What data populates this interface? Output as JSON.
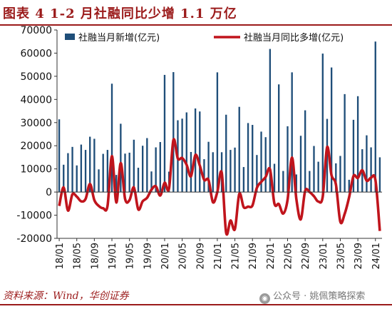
{
  "figure": {
    "label": "图表 4",
    "title": "1-2 月社融同比少增 1.1 万亿",
    "source": "资料来源：Wind，华创证券",
    "watermark": "公众号 · 姚佩策略探索",
    "colors": {
      "bar": "#1f4e79",
      "line": "#c0141c",
      "accent": "#9b1b1b"
    }
  },
  "chart_data": {
    "type": "bar",
    "title": "",
    "xlabel": "",
    "ylabel": "",
    "ylim": [
      -20000,
      70000
    ],
    "yticks": [
      -20000,
      -10000,
      0,
      10000,
      20000,
      30000,
      40000,
      50000,
      60000,
      70000
    ],
    "xtick_labels": [
      "18/01",
      "18/05",
      "18/09",
      "19/01",
      "19/05",
      "19/09",
      "20/01",
      "20/05",
      "20/09",
      "21/01",
      "21/05",
      "21/09",
      "22/01",
      "22/05",
      "22/09",
      "23/01",
      "23/05",
      "23/09",
      "24/01"
    ],
    "grid": false,
    "legend_position": "top",
    "categories": [
      "18/01",
      "18/02",
      "18/03",
      "18/04",
      "18/05",
      "18/06",
      "18/07",
      "18/08",
      "18/09",
      "18/10",
      "18/11",
      "18/12",
      "19/01",
      "19/02",
      "19/03",
      "19/04",
      "19/05",
      "19/06",
      "19/07",
      "19/08",
      "19/09",
      "19/10",
      "19/11",
      "19/12",
      "20/01",
      "20/02",
      "20/03",
      "20/04",
      "20/05",
      "20/06",
      "20/07",
      "20/08",
      "20/09",
      "20/10",
      "20/11",
      "20/12",
      "21/01",
      "21/02",
      "21/03",
      "21/04",
      "21/05",
      "21/06",
      "21/07",
      "21/08",
      "21/09",
      "21/10",
      "21/11",
      "21/12",
      "22/01",
      "22/02",
      "22/03",
      "22/04",
      "22/05",
      "22/06",
      "22/07",
      "22/08",
      "22/09",
      "22/10",
      "22/11",
      "22/12",
      "23/01",
      "23/02",
      "23/03",
      "23/04",
      "23/05",
      "23/06",
      "23/07",
      "23/08",
      "23/09",
      "23/10",
      "23/11",
      "23/12",
      "24/01",
      "24/02"
    ],
    "series": [
      {
        "name": "社融当月新增(亿元)",
        "kind": "bar",
        "values": [
          31400,
          11800,
          16800,
          19500,
          11500,
          20500,
          18200,
          23900,
          23000,
          9800,
          16500,
          18200,
          46800,
          7400,
          29500,
          16600,
          17000,
          22600,
          10500,
          20000,
          23300,
          8900,
          19300,
          21600,
          50600,
          8800,
          51800,
          31000,
          31700,
          34400,
          17300,
          36100,
          34800,
          14200,
          21700,
          17200,
          51700,
          17200,
          33400,
          18200,
          19200,
          36800,
          10800,
          29800,
          29000,
          16000,
          26100,
          23700,
          61800,
          12200,
          46500,
          9100,
          28400,
          51700,
          7600,
          24300,
          35300,
          9100,
          19900,
          13100,
          59800,
          31600,
          53800,
          12400,
          15600,
          42300,
          5300,
          31200,
          41400,
          18500,
          24500,
          19300,
          65000,
          15000
        ]
      },
      {
        "name": "社融当月同比多增(亿元)",
        "kind": "line",
        "values": [
          -6000,
          2000,
          -8000,
          -1000,
          -2000,
          -4000,
          -3000,
          3500,
          -3500,
          -6000,
          -7000,
          -6000,
          15500,
          -4500,
          12500,
          -3000,
          -3500,
          2000,
          -7500,
          -4000,
          -2500,
          1000,
          2500,
          -1500,
          4000,
          1500,
          22500,
          14500,
          14700,
          11800,
          6800,
          16000,
          11500,
          5300,
          5200,
          -4400,
          0,
          8400,
          -17500,
          -12300,
          -16000,
          -800,
          -6500,
          -6300,
          -5800,
          1800,
          4400,
          6500,
          9800,
          -5000,
          -5200,
          -9300,
          -3300,
          14900,
          -3100,
          -11800,
          500,
          0,
          -1800,
          -4100,
          -2000,
          19400,
          7300,
          3300,
          -12800,
          -9400,
          -2300,
          6900,
          6100,
          9400,
          4900,
          6200,
          5200,
          -16800
        ]
      }
    ]
  }
}
